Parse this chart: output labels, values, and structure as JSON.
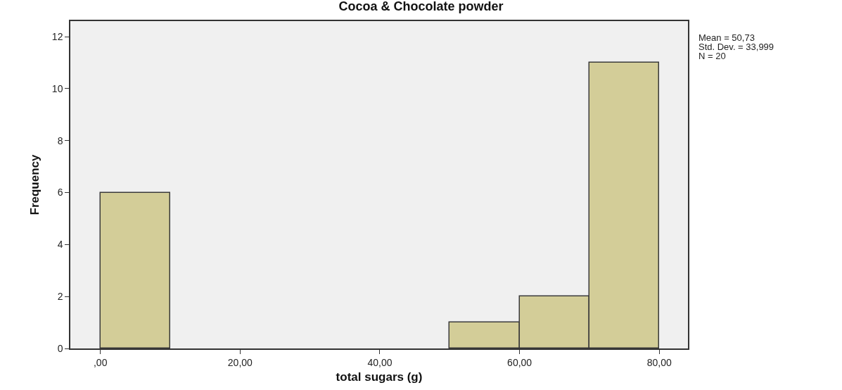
{
  "chart_data": {
    "type": "histogram",
    "title": "Cocoa & Chocolate powder",
    "xlabel": "total sugars (g)",
    "ylabel": "Frequency",
    "bins": [
      0,
      10,
      20,
      30,
      40,
      50,
      60,
      70,
      80
    ],
    "values": [
      6,
      0,
      0,
      0,
      0,
      1,
      2,
      11
    ],
    "color": "#d3cd98",
    "xlim": [
      -4.3,
      84.1
    ],
    "xticks": [
      {
        "value": 0,
        "label": ",00"
      },
      {
        "value": 20,
        "label": "20,00"
      },
      {
        "value": 40,
        "label": "40,00"
      },
      {
        "value": 60,
        "label": "60,00"
      },
      {
        "value": 80,
        "label": "80,00"
      }
    ],
    "ylim": [
      0,
      12.6
    ],
    "yticks": [
      0,
      2,
      4,
      6,
      8,
      10,
      12
    ],
    "grid": false,
    "annotations": [
      "Mean = 50,73",
      "Std. Dev. = 33,999",
      "N = 20"
    ]
  }
}
